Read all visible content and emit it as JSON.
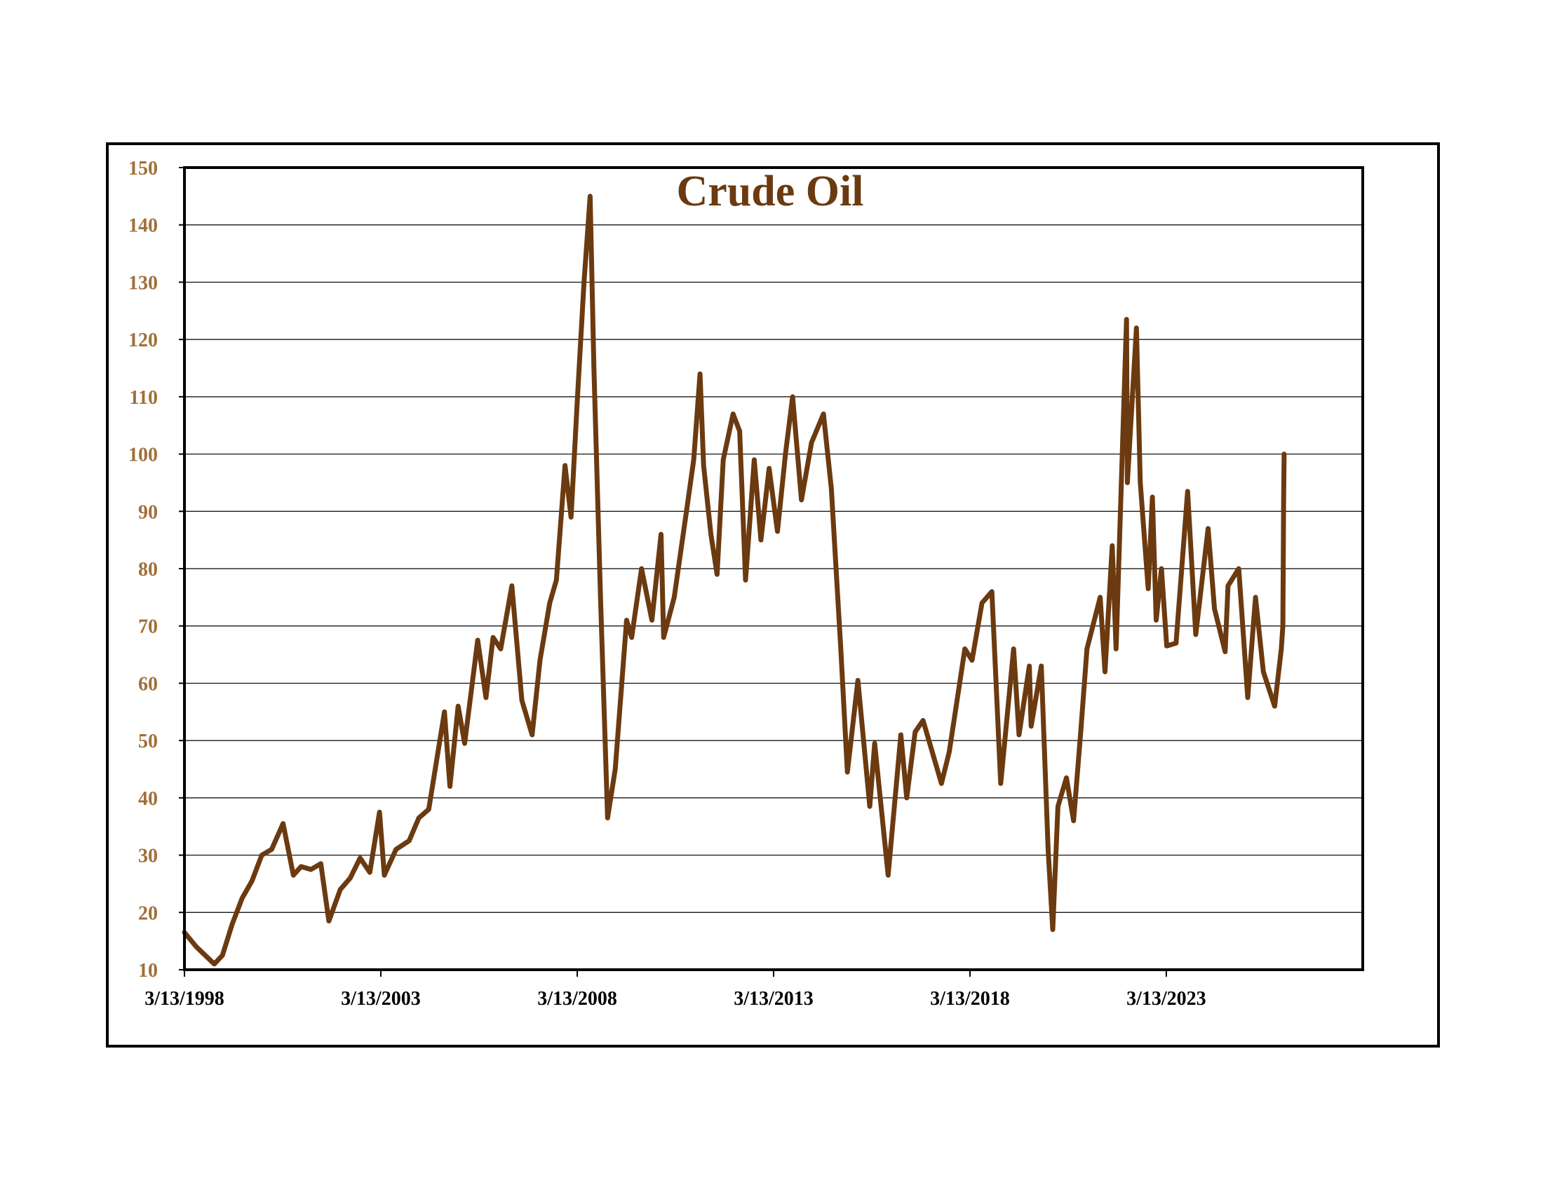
{
  "chart_data": {
    "type": "line",
    "title": "Crude Oil",
    "xlabel": "",
    "ylabel": "",
    "ylim": [
      10,
      150
    ],
    "yticks": [
      10,
      20,
      30,
      40,
      50,
      60,
      70,
      80,
      90,
      100,
      110,
      120,
      130,
      140,
      150
    ],
    "xlim": [
      "3/13/1998",
      "3/13/2028"
    ],
    "xtick_labels": [
      "3/13/1998",
      "3/13/2003",
      "3/13/2008",
      "3/13/2013",
      "3/13/2018",
      "3/13/2023"
    ],
    "grid": "horizontal",
    "legend": "none",
    "colors": {
      "line": "#6b3a10",
      "tick_label_y": "#a0703a",
      "title": "#6b3a10",
      "axis": "#000000",
      "grid": "#000000"
    },
    "series": [
      {
        "values": [
          [
            "1998-03-13",
            16.5
          ],
          [
            "1998-07-01",
            14.0
          ],
          [
            "1998-12-15",
            11.0
          ],
          [
            "1999-03-01",
            12.5
          ],
          [
            "1999-06-01",
            18.0
          ],
          [
            "1999-09-01",
            22.5
          ],
          [
            "1999-12-01",
            25.5
          ],
          [
            "2000-03-01",
            30.0
          ],
          [
            "2000-06-01",
            31.0
          ],
          [
            "2000-09-15",
            35.5
          ],
          [
            "2000-12-20",
            26.5
          ],
          [
            "2001-03-01",
            28.0
          ],
          [
            "2001-06-01",
            27.5
          ],
          [
            "2001-09-01",
            28.5
          ],
          [
            "2001-11-15",
            18.5
          ],
          [
            "2002-03-01",
            24.0
          ],
          [
            "2002-06-01",
            26.0
          ],
          [
            "2002-09-01",
            29.5
          ],
          [
            "2002-12-01",
            27.0
          ],
          [
            "2003-03-01",
            37.5
          ],
          [
            "2003-04-15",
            26.5
          ],
          [
            "2003-08-01",
            31.0
          ],
          [
            "2003-12-01",
            32.5
          ],
          [
            "2004-03-01",
            36.5
          ],
          [
            "2004-06-01",
            38.0
          ],
          [
            "2004-10-25",
            55.0
          ],
          [
            "2004-12-15",
            42.0
          ],
          [
            "2005-03-01",
            56.0
          ],
          [
            "2005-05-01",
            49.5
          ],
          [
            "2005-08-30",
            67.5
          ],
          [
            "2005-11-15",
            57.5
          ],
          [
            "2006-01-20",
            68.0
          ],
          [
            "2006-04-01",
            66.0
          ],
          [
            "2006-07-14",
            77.0
          ],
          [
            "2006-10-15",
            57.0
          ],
          [
            "2007-01-18",
            51.0
          ],
          [
            "2007-04-01",
            64.0
          ],
          [
            "2007-07-01",
            74.0
          ],
          [
            "2007-09-01",
            78.0
          ],
          [
            "2007-11-20",
            98.0
          ],
          [
            "2008-01-15",
            89.0
          ],
          [
            "2008-03-15",
            110.0
          ],
          [
            "2008-05-15",
            130.0
          ],
          [
            "2008-07-11",
            145.0
          ],
          [
            "2008-08-15",
            115.0
          ],
          [
            "2008-10-15",
            75.0
          ],
          [
            "2008-12-20",
            36.5
          ],
          [
            "2009-03-01",
            45.0
          ],
          [
            "2009-06-15",
            71.0
          ],
          [
            "2009-08-01",
            68.0
          ],
          [
            "2009-11-01",
            80.0
          ],
          [
            "2010-02-05",
            71.0
          ],
          [
            "2010-05-01",
            86.0
          ],
          [
            "2010-05-25",
            68.0
          ],
          [
            "2010-09-01",
            75.0
          ],
          [
            "2010-12-31",
            91.0
          ],
          [
            "2011-03-01",
            99.0
          ],
          [
            "2011-04-29",
            114.0
          ],
          [
            "2011-06-01",
            98.0
          ],
          [
            "2011-08-08",
            86.0
          ],
          [
            "2011-10-04",
            79.0
          ],
          [
            "2011-12-01",
            99.0
          ],
          [
            "2012-03-01",
            107.0
          ],
          [
            "2012-05-01",
            104.0
          ],
          [
            "2012-06-25",
            78.0
          ],
          [
            "2012-09-14",
            99.0
          ],
          [
            "2012-11-15",
            85.0
          ],
          [
            "2013-01-30",
            97.5
          ],
          [
            "2013-04-18",
            86.5
          ],
          [
            "2013-07-01",
            100.0
          ],
          [
            "2013-09-06",
            110.0
          ],
          [
            "2013-11-27",
            92.0
          ],
          [
            "2014-03-01",
            102.0
          ],
          [
            "2014-06-20",
            107.0
          ],
          [
            "2014-09-01",
            94.0
          ],
          [
            "2014-11-28",
            66.0
          ],
          [
            "2015-01-28",
            44.5
          ],
          [
            "2015-05-06",
            60.5
          ],
          [
            "2015-08-24",
            38.5
          ],
          [
            "2015-10-09",
            49.5
          ],
          [
            "2016-02-11",
            26.5
          ],
          [
            "2016-06-08",
            51.0
          ],
          [
            "2016-08-02",
            40.0
          ],
          [
            "2016-10-19",
            51.5
          ],
          [
            "2017-01-01",
            53.5
          ],
          [
            "2017-06-21",
            42.5
          ],
          [
            "2017-09-01",
            48.0
          ],
          [
            "2018-01-25",
            66.0
          ],
          [
            "2018-04-01",
            64.0
          ],
          [
            "2018-07-03",
            74.0
          ],
          [
            "2018-10-03",
            76.0
          ],
          [
            "2018-12-24",
            42.5
          ],
          [
            "2019-04-23",
            66.0
          ],
          [
            "2019-06-12",
            51.0
          ],
          [
            "2019-09-16",
            63.0
          ],
          [
            "2019-10-03",
            52.5
          ],
          [
            "2020-01-06",
            63.0
          ],
          [
            "2020-03-09",
            31.0
          ],
          [
            "2020-04-21",
            17.0
          ],
          [
            "2020-06-08",
            38.5
          ],
          [
            "2020-08-26",
            43.5
          ],
          [
            "2020-11-01",
            36.0
          ],
          [
            "2021-01-08",
            52.0
          ],
          [
            "2021-03-05",
            66.0
          ],
          [
            "2021-07-06",
            75.0
          ],
          [
            "2021-08-20",
            62.0
          ],
          [
            "2021-10-26",
            84.0
          ],
          [
            "2021-12-01",
            66.0
          ],
          [
            "2022-03-08",
            123.5
          ],
          [
            "2022-03-16",
            95.0
          ],
          [
            "2022-06-08",
            122.0
          ],
          [
            "2022-07-14",
            95.0
          ],
          [
            "2022-09-26",
            76.5
          ],
          [
            "2022-11-04",
            92.5
          ],
          [
            "2022-12-09",
            71.0
          ],
          [
            "2023-01-27",
            80.0
          ],
          [
            "2023-03-17",
            66.5
          ],
          [
            "2023-06-12",
            67.0
          ],
          [
            "2023-09-27",
            93.5
          ],
          [
            "2023-12-12",
            68.5
          ],
          [
            "2024-04-05",
            87.0
          ],
          [
            "2024-06-03",
            73.0
          ],
          [
            "2024-09-10",
            65.5
          ],
          [
            "2024-10-07",
            77.0
          ],
          [
            "2025-01-15",
            80.0
          ],
          [
            "2025-04-08",
            57.5
          ],
          [
            "2025-06-20",
            75.0
          ],
          [
            "2025-09-01",
            62.0
          ],
          [
            "2025-12-15",
            56.0
          ],
          [
            "2026-02-15",
            66.0
          ],
          [
            "2026-03-01",
            70.0
          ],
          [
            "2026-03-08",
            92.0
          ],
          [
            "2026-03-13",
            100.0
          ]
        ]
      }
    ]
  }
}
